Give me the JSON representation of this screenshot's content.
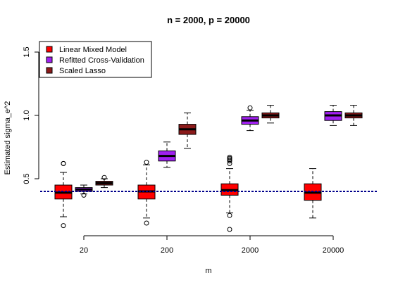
{
  "chart_data": {
    "type": "boxplot",
    "title": "n = 2000, p = 20000",
    "xlabel": "m",
    "ylabel": "Estimated sigma_e^2",
    "ylim": [
      0.05,
      1.65
    ],
    "y_ticks": [
      0.5,
      1.0,
      1.5
    ],
    "y_tick_labels": [
      "0.5",
      "1.0",
      "1.5"
    ],
    "groups": [
      "20",
      "200",
      "2000",
      "20000"
    ],
    "reference_line": 0.4,
    "reference_color": "#00008b",
    "legend_position": "top-left",
    "series": [
      {
        "name": "Linear Mixed Model",
        "color": "#ff0000",
        "boxes": [
          {
            "whisker_low": 0.2,
            "q1": 0.34,
            "median": 0.39,
            "q3": 0.45,
            "whisker_high": 0.55,
            "outliers": [
              0.62,
              0.62,
              0.13
            ]
          },
          {
            "whisker_low": 0.19,
            "q1": 0.34,
            "median": 0.4,
            "q3": 0.45,
            "whisker_high": 0.61,
            "outliers": [
              0.63,
              0.15
            ]
          },
          {
            "whisker_low": 0.23,
            "q1": 0.37,
            "median": 0.41,
            "q3": 0.46,
            "whisker_high": 0.58,
            "outliers": [
              0.67,
              0.66,
              0.65,
              0.64,
              0.62,
              0.21,
              0.1
            ]
          },
          {
            "whisker_low": 0.19,
            "q1": 0.33,
            "median": 0.39,
            "q3": 0.46,
            "whisker_high": 0.58,
            "outliers": []
          }
        ]
      },
      {
        "name": "Refitted Cross-Validation",
        "color": "#a020f0",
        "boxes": [
          {
            "whisker_low": 0.38,
            "q1": 0.4,
            "median": 0.415,
            "q3": 0.43,
            "whisker_high": 0.45,
            "outliers": [
              0.37
            ]
          },
          {
            "whisker_low": 0.59,
            "q1": 0.64,
            "median": 0.68,
            "q3": 0.72,
            "whisker_high": 0.79,
            "outliers": []
          },
          {
            "whisker_low": 0.88,
            "q1": 0.93,
            "median": 0.96,
            "q3": 0.99,
            "whisker_high": 1.04,
            "outliers": [
              1.06
            ]
          },
          {
            "whisker_low": 0.92,
            "q1": 0.96,
            "median": 1.0,
            "q3": 1.03,
            "whisker_high": 1.08,
            "outliers": []
          }
        ]
      },
      {
        "name": "Scaled Lasso",
        "color": "#8b1a1a",
        "boxes": [
          {
            "whisker_low": 0.43,
            "q1": 0.45,
            "median": 0.465,
            "q3": 0.48,
            "whisker_high": 0.5,
            "outliers": [
              0.51
            ]
          },
          {
            "whisker_low": 0.74,
            "q1": 0.85,
            "median": 0.89,
            "q3": 0.93,
            "whisker_high": 1.02,
            "outliers": []
          },
          {
            "whisker_low": 0.94,
            "q1": 0.98,
            "median": 1.0,
            "q3": 1.02,
            "whisker_high": 1.08,
            "outliers": []
          },
          {
            "whisker_low": 0.92,
            "q1": 0.98,
            "median": 1.0,
            "q3": 1.02,
            "whisker_high": 1.08,
            "outliers": []
          }
        ]
      }
    ]
  }
}
